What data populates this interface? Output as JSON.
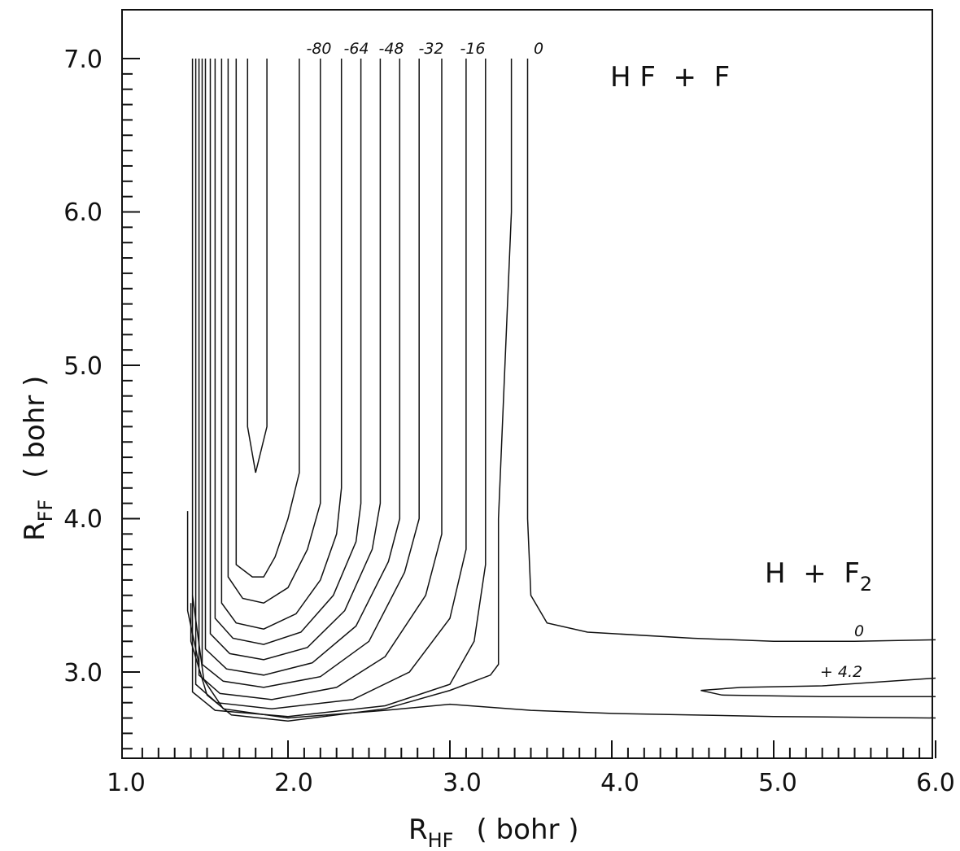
{
  "chart_data": {
    "type": "contour",
    "xlabel": {
      "main": "R",
      "sub": "HF",
      "unit": "( bohr )"
    },
    "ylabel": {
      "main": "R",
      "sub": "FF",
      "unit": "( bohr )"
    },
    "xlim": [
      1.0,
      6.0
    ],
    "ylim": [
      2.4,
      7.3
    ],
    "x_ticks": [
      "1.0",
      "2.0",
      "3.0",
      "4.0",
      "5.0",
      "6.0"
    ],
    "y_ticks": [
      "3.0",
      "4.0",
      "5.0",
      "6.0",
      "7.0"
    ],
    "grid": false,
    "region_labels": [
      {
        "text": "H F  +  F"
      },
      {
        "main": "H  +  F",
        "sub": "2"
      }
    ],
    "contour_labels": [
      "-80",
      "-64",
      "-48",
      "-32",
      "-16",
      "0",
      "0",
      "+ 4.2"
    ],
    "series": [
      {
        "points": [
          [
            1.75,
            7.0
          ],
          [
            1.75,
            4.6
          ],
          [
            1.8,
            4.3
          ],
          [
            1.87,
            4.6
          ],
          [
            1.87,
            7.0
          ]
        ]
      },
      {
        "points": [
          [
            1.68,
            7.0
          ],
          [
            1.68,
            3.7
          ],
          [
            1.78,
            3.62
          ],
          [
            1.85,
            3.62
          ],
          [
            1.92,
            3.75
          ],
          [
            2.0,
            4.0
          ],
          [
            2.07,
            4.3
          ],
          [
            2.07,
            7.0
          ]
        ]
      },
      {
        "points": [
          [
            1.63,
            7.0
          ],
          [
            1.63,
            3.62
          ],
          [
            1.72,
            3.48
          ],
          [
            1.85,
            3.45
          ],
          [
            2.0,
            3.55
          ],
          [
            2.12,
            3.8
          ],
          [
            2.2,
            4.1
          ],
          [
            2.2,
            7.0
          ]
        ]
      },
      {
        "points": [
          [
            1.59,
            7.0
          ],
          [
            1.59,
            3.45
          ],
          [
            1.68,
            3.32
          ],
          [
            1.85,
            3.28
          ],
          [
            2.05,
            3.38
          ],
          [
            2.2,
            3.6
          ],
          [
            2.3,
            3.9
          ],
          [
            2.33,
            4.2
          ],
          [
            2.33,
            7.0
          ]
        ]
      },
      {
        "points": [
          [
            1.55,
            7.0
          ],
          [
            1.55,
            3.35
          ],
          [
            1.66,
            3.22
          ],
          [
            1.85,
            3.18
          ],
          [
            2.08,
            3.26
          ],
          [
            2.28,
            3.5
          ],
          [
            2.42,
            3.85
          ],
          [
            2.45,
            4.1
          ],
          [
            2.45,
            7.0
          ]
        ]
      },
      {
        "points": [
          [
            1.52,
            7.0
          ],
          [
            1.52,
            3.25
          ],
          [
            1.64,
            3.12
          ],
          [
            1.85,
            3.08
          ],
          [
            2.12,
            3.16
          ],
          [
            2.35,
            3.4
          ],
          [
            2.52,
            3.8
          ],
          [
            2.57,
            4.1
          ],
          [
            2.57,
            7.0
          ]
        ]
      },
      {
        "points": [
          [
            1.49,
            7.0
          ],
          [
            1.49,
            3.15
          ],
          [
            1.62,
            3.02
          ],
          [
            1.85,
            2.98
          ],
          [
            2.15,
            3.06
          ],
          [
            2.42,
            3.3
          ],
          [
            2.62,
            3.72
          ],
          [
            2.69,
            4.0
          ],
          [
            2.69,
            7.0
          ]
        ]
      },
      {
        "points": [
          [
            1.47,
            7.0
          ],
          [
            1.47,
            3.05
          ],
          [
            1.6,
            2.94
          ],
          [
            1.85,
            2.9
          ],
          [
            2.2,
            2.97
          ],
          [
            2.5,
            3.2
          ],
          [
            2.72,
            3.65
          ],
          [
            2.81,
            4.0
          ],
          [
            2.81,
            7.0
          ]
        ]
      },
      {
        "points": [
          [
            1.45,
            7.0
          ],
          [
            1.45,
            2.98
          ],
          [
            1.58,
            2.86
          ],
          [
            1.9,
            2.82
          ],
          [
            2.3,
            2.9
          ],
          [
            2.6,
            3.1
          ],
          [
            2.85,
            3.5
          ],
          [
            2.95,
            3.9
          ],
          [
            2.95,
            7.0
          ]
        ]
      },
      {
        "points": [
          [
            1.43,
            7.0
          ],
          [
            1.43,
            2.92
          ],
          [
            1.56,
            2.8
          ],
          [
            1.9,
            2.76
          ],
          [
            2.4,
            2.82
          ],
          [
            2.75,
            3.0
          ],
          [
            3.0,
            3.35
          ],
          [
            3.1,
            3.8
          ],
          [
            3.1,
            7.0
          ]
        ]
      },
      {
        "points": [
          [
            1.41,
            7.0
          ],
          [
            1.41,
            2.87
          ],
          [
            1.55,
            2.75
          ],
          [
            2.0,
            2.71
          ],
          [
            2.6,
            2.78
          ],
          [
            3.0,
            2.92
          ],
          [
            3.15,
            3.2
          ],
          [
            3.22,
            3.7
          ],
          [
            3.22,
            7.0
          ]
        ]
      },
      {
        "points": [
          [
            1.4,
            3.45
          ],
          [
            1.4,
            3.2
          ],
          [
            1.5,
            2.85
          ],
          [
            1.65,
            2.72
          ],
          [
            2.0,
            2.68
          ],
          [
            2.6,
            2.76
          ],
          [
            3.0,
            2.88
          ],
          [
            3.25,
            2.98
          ],
          [
            3.3,
            3.05
          ],
          [
            3.3,
            4.0
          ],
          [
            3.38,
            6.0
          ],
          [
            3.38,
            7.0
          ]
        ]
      },
      {
        "points": [
          [
            1.41,
            3.5
          ],
          [
            1.48,
            2.95
          ],
          [
            1.6,
            2.76
          ],
          [
            2.0,
            2.7
          ],
          [
            2.6,
            2.75
          ],
          [
            3.0,
            2.79
          ],
          [
            3.5,
            2.75
          ],
          [
            4.0,
            2.73
          ],
          [
            5.0,
            2.71
          ],
          [
            6.0,
            2.7
          ]
        ]
      },
      {
        "points": [
          [
            1.38,
            4.05
          ],
          [
            1.38,
            3.4
          ],
          [
            1.45,
            3.05
          ]
        ]
      },
      {
        "points": [
          [
            3.48,
            7.0
          ],
          [
            3.48,
            4.0
          ],
          [
            3.5,
            3.5
          ],
          [
            3.6,
            3.32
          ],
          [
            3.85,
            3.26
          ],
          [
            4.5,
            3.22
          ],
          [
            5.0,
            3.2
          ],
          [
            5.5,
            3.2
          ],
          [
            6.0,
            3.21
          ]
        ]
      },
      {
        "points": [
          [
            6.0,
            2.96
          ],
          [
            5.3,
            2.91
          ],
          [
            4.8,
            2.9
          ],
          [
            4.55,
            2.88
          ],
          [
            4.68,
            2.85
          ],
          [
            5.3,
            2.84
          ],
          [
            6.0,
            2.84
          ]
        ]
      }
    ]
  }
}
